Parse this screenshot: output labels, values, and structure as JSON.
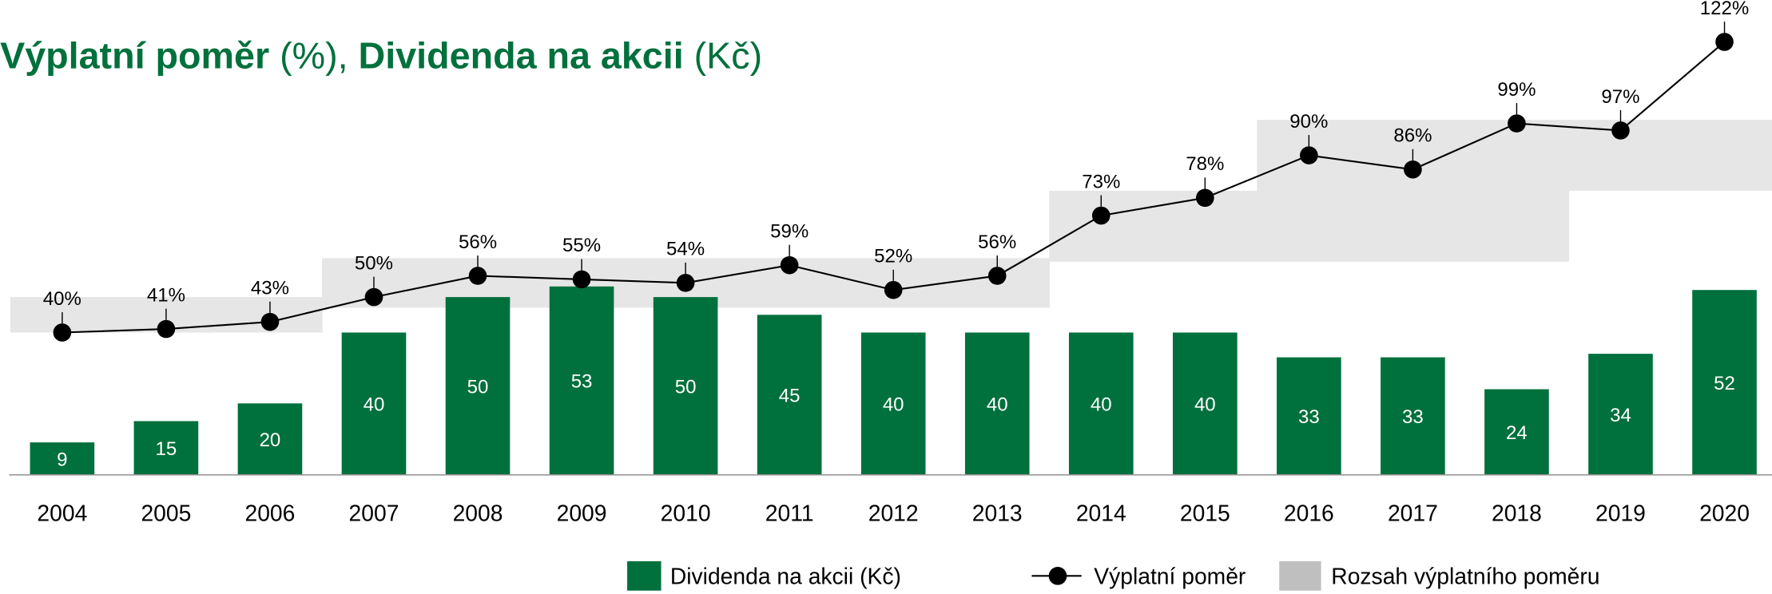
{
  "chart_data": {
    "type": "bar_line",
    "title_parts": [
      {
        "text": "Výplatní poměr",
        "bold": true
      },
      {
        "text": " (%), ",
        "bold": false
      },
      {
        "text": "Dividenda na akcii",
        "bold": true
      },
      {
        "text": " (Kč)",
        "bold": false
      }
    ],
    "categories": [
      "2004",
      "2005",
      "2006",
      "2007",
      "2008",
      "2009",
      "2010",
      "2011",
      "2012",
      "2013",
      "2014",
      "2015",
      "2016",
      "2017",
      "2018",
      "2019",
      "2020"
    ],
    "ylim": [
      0,
      130
    ],
    "y2lim": [
      0,
      130
    ],
    "series": [
      {
        "name": "Dividenda na akcii (Kč)",
        "type": "bar",
        "color": "#00703c",
        "values": [
          9,
          15,
          20,
          40,
          50,
          53,
          50,
          45,
          40,
          40,
          40,
          40,
          33,
          33,
          24,
          34,
          52
        ]
      },
      {
        "name": "Výplatní poměr",
        "type": "line",
        "axis": "y2",
        "color": "#000000",
        "values": [
          40,
          41,
          43,
          50,
          56,
          55,
          54,
          59,
          52,
          56,
          73,
          78,
          90,
          86,
          99,
          97,
          122
        ],
        "value_labels": [
          "40%",
          "41%",
          "43%",
          "50%",
          "56%",
          "55%",
          "54%",
          "59%",
          "52%",
          "56%",
          "73%",
          "78%",
          "90%",
          "86%",
          "99%",
          "97%",
          "122%"
        ]
      },
      {
        "name": "Rozsah výplatního poměru",
        "type": "range",
        "axis": "y2",
        "color": "#e6e6e6",
        "low": [
          40,
          40,
          40,
          47,
          47,
          47,
          47,
          47,
          47,
          47,
          60,
          60,
          60,
          60,
          60,
          80,
          80
        ],
        "high": [
          50,
          50,
          50,
          61,
          61,
          61,
          61,
          61,
          61,
          61,
          80,
          80,
          100,
          100,
          100,
          100,
          100
        ]
      }
    ]
  }
}
